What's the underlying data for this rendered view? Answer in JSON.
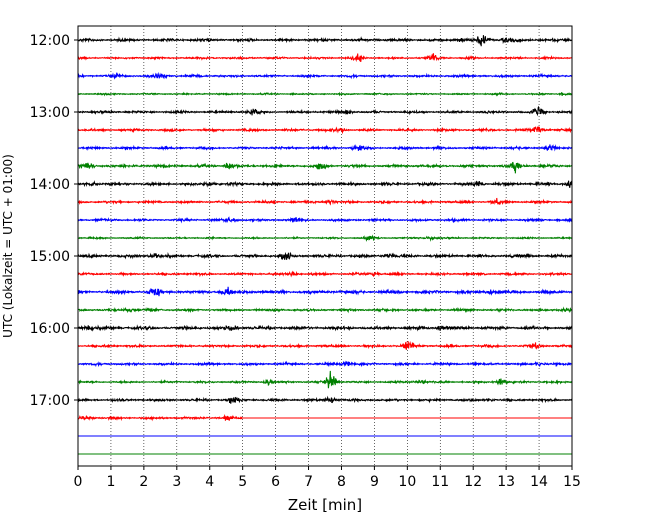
{
  "chart_data": {
    "type": "line",
    "title": "",
    "xlabel": "Zeit  [min]",
    "ylabel": "UTC (Lokalzeit = UTC + 01:00)",
    "xlim": [
      0,
      15
    ],
    "x_ticks": [
      "0",
      "1",
      "2",
      "3",
      "4",
      "5",
      "6",
      "7",
      "8",
      "9",
      "10",
      "11",
      "12",
      "13",
      "14",
      "15"
    ],
    "y_ticks": [
      "12:00",
      "13:00",
      "14:00",
      "15:00",
      "16:00",
      "17:00"
    ],
    "grid": "vertical-dotted",
    "legend": "none",
    "colors": [
      "#000000",
      "#ff0000",
      "#0000ff",
      "#008000"
    ],
    "rows": [
      {
        "start": "12:00",
        "color": "#000000",
        "amplitude": 0.7,
        "bursts": [
          [
            12.3,
            0.9
          ],
          [
            11.6,
            0.6
          ],
          [
            13.0,
            0.6
          ]
        ],
        "active_until": 15
      },
      {
        "start": "12:15",
        "color": "#ff0000",
        "amplitude": 0.5,
        "bursts": [
          [
            8.5,
            0.6
          ],
          [
            10.8,
            0.5
          ]
        ],
        "active_until": 15
      },
      {
        "start": "12:30",
        "color": "#0000ff",
        "amplitude": 0.6,
        "bursts": [
          [
            2.5,
            0.5
          ],
          [
            1.2,
            0.4
          ]
        ],
        "active_until": 15
      },
      {
        "start": "12:45",
        "color": "#008000",
        "amplitude": 0.4,
        "bursts": [
          [
            14.7,
            0.4
          ]
        ],
        "active_until": 15
      },
      {
        "start": "13:00",
        "color": "#000000",
        "amplitude": 0.6,
        "bursts": [
          [
            14.0,
            0.9
          ],
          [
            8.2,
            0.5
          ],
          [
            5.3,
            0.5
          ]
        ],
        "active_until": 15
      },
      {
        "start": "13:15",
        "color": "#ff0000",
        "amplitude": 0.6,
        "bursts": [
          [
            14.0,
            0.9
          ],
          [
            8.0,
            0.5
          ]
        ],
        "active_until": 15
      },
      {
        "start": "13:30",
        "color": "#0000ff",
        "amplitude": 0.6,
        "bursts": [
          [
            8.5,
            0.5
          ],
          [
            14.3,
            0.5
          ]
        ],
        "active_until": 15
      },
      {
        "start": "13:45",
        "color": "#008000",
        "amplitude": 0.7,
        "bursts": [
          [
            4.6,
            0.8
          ],
          [
            13.3,
            0.8
          ],
          [
            0.3,
            0.6
          ],
          [
            7.4,
            0.6
          ]
        ],
        "active_until": 15
      },
      {
        "start": "14:00",
        "color": "#000000",
        "amplitude": 0.7,
        "bursts": [
          [
            14.9,
            0.9
          ],
          [
            4.0,
            0.6
          ],
          [
            0.5,
            0.6
          ],
          [
            12.2,
            0.6
          ]
        ],
        "active_until": 15
      },
      {
        "start": "14:15",
        "color": "#ff0000",
        "amplitude": 0.6,
        "bursts": [
          [
            7.6,
            0.6
          ],
          [
            12.7,
            0.5
          ]
        ],
        "active_until": 15
      },
      {
        "start": "14:30",
        "color": "#0000ff",
        "amplitude": 0.6,
        "bursts": [
          [
            4.7,
            0.6
          ],
          [
            6.6,
            0.5
          ]
        ],
        "active_until": 15
      },
      {
        "start": "14:45",
        "color": "#008000",
        "amplitude": 0.4,
        "bursts": [
          [
            8.9,
            0.5
          ],
          [
            10.7,
            0.5
          ]
        ],
        "active_until": 15
      },
      {
        "start": "15:00",
        "color": "#000000",
        "amplitude": 0.7,
        "bursts": [
          [
            2.3,
            0.7
          ],
          [
            6.3,
            0.7
          ],
          [
            9.4,
            0.6
          ]
        ],
        "active_until": 15
      },
      {
        "start": "15:15",
        "color": "#ff0000",
        "amplitude": 0.6,
        "bursts": [
          [
            6.5,
            0.5
          ],
          [
            9.0,
            0.5
          ]
        ],
        "active_until": 15
      },
      {
        "start": "15:30",
        "color": "#0000ff",
        "amplitude": 0.8,
        "bursts": [
          [
            4.5,
            0.9
          ],
          [
            2.3,
            0.8
          ],
          [
            12.5,
            0.6
          ]
        ],
        "active_until": 15
      },
      {
        "start": "15:45",
        "color": "#008000",
        "amplitude": 0.6,
        "bursts": [
          [
            1.6,
            0.6
          ],
          [
            14.8,
            0.6
          ]
        ],
        "active_until": 15
      },
      {
        "start": "16:00",
        "color": "#000000",
        "amplitude": 0.8,
        "bursts": [
          [
            0.3,
            0.8
          ],
          [
            4.7,
            0.6
          ],
          [
            11.0,
            0.6
          ]
        ],
        "active_until": 15
      },
      {
        "start": "16:15",
        "color": "#ff0000",
        "amplitude": 0.6,
        "bursts": [
          [
            10.0,
            0.7
          ],
          [
            13.9,
            0.6
          ]
        ],
        "active_until": 15
      },
      {
        "start": "16:30",
        "color": "#0000ff",
        "amplitude": 0.6,
        "bursts": [
          [
            8.2,
            0.7
          ],
          [
            14.0,
            0.5
          ]
        ],
        "active_until": 15
      },
      {
        "start": "16:45",
        "color": "#008000",
        "amplitude": 0.5,
        "bursts": [
          [
            7.7,
            2.0
          ],
          [
            12.8,
            1.5
          ],
          [
            5.8,
            0.9
          ],
          [
            10.4,
            0.7
          ]
        ],
        "active_until": 15
      },
      {
        "start": "17:00",
        "color": "#000000",
        "amplitude": 0.6,
        "bursts": [
          [
            4.7,
            0.7
          ],
          [
            7.7,
            0.8
          ],
          [
            12.5,
            0.6
          ]
        ],
        "active_until": 15
      },
      {
        "start": "17:15",
        "color": "#ff0000",
        "amplitude": 0.6,
        "bursts": [
          [
            0.3,
            0.6
          ],
          [
            4.5,
            0.4
          ]
        ],
        "active_until": 5.0
      },
      {
        "start": "17:30",
        "color": "#0000ff",
        "amplitude": 0.0,
        "bursts": [],
        "active_until": 0
      },
      {
        "start": "17:45",
        "color": "#008000",
        "amplitude": 0.0,
        "bursts": [],
        "active_until": 0
      }
    ]
  }
}
